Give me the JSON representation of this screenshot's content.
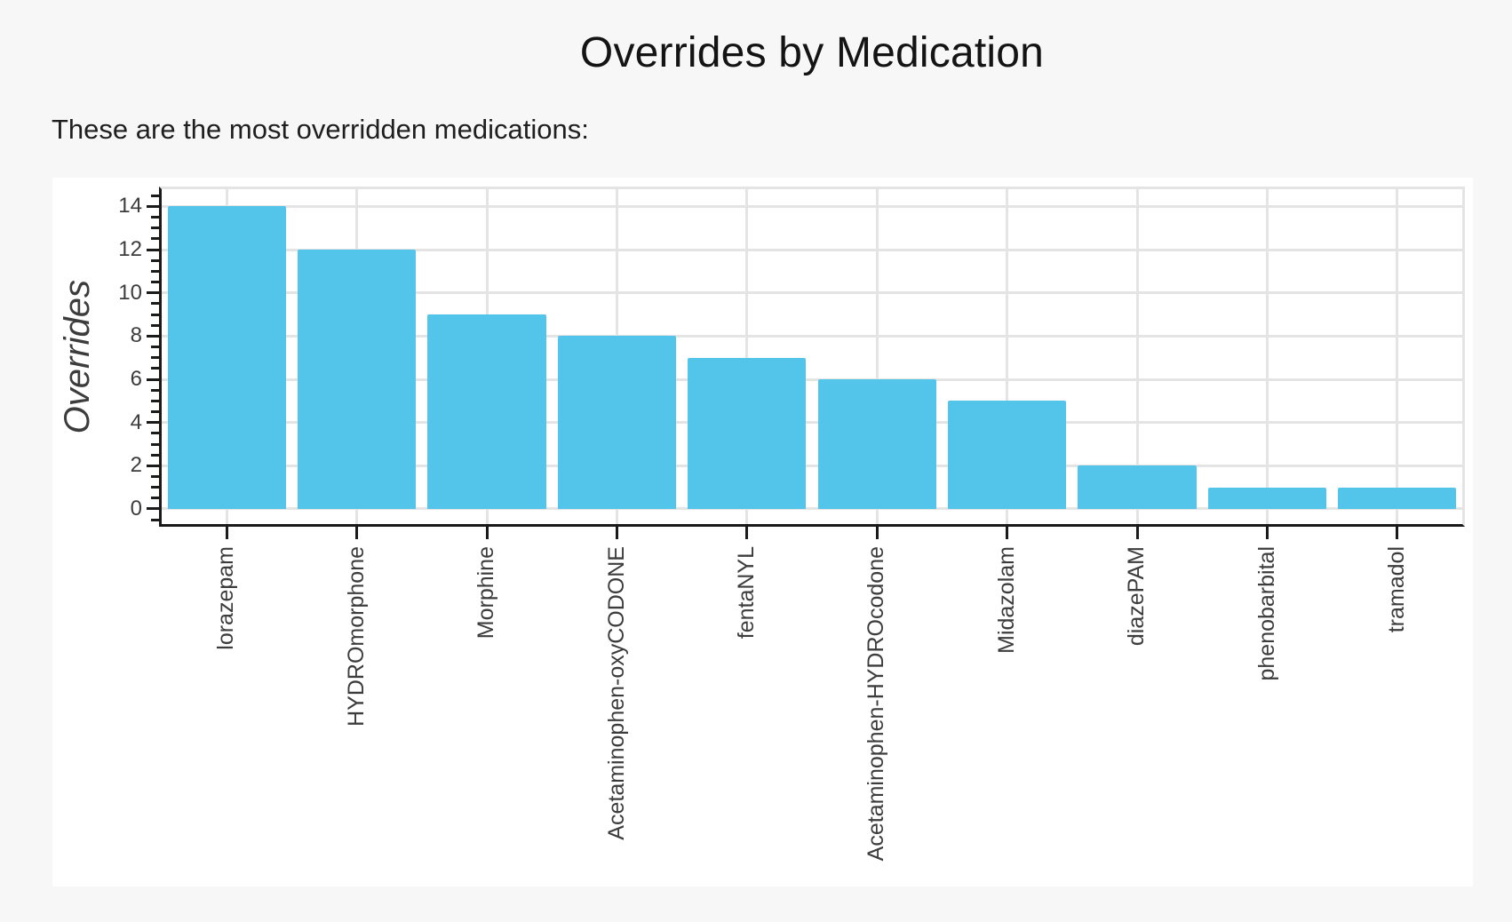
{
  "chart_data": {
    "type": "bar",
    "title": "Overrides by Medication",
    "subtitle": "These are the most overridden medications:",
    "ylabel": "Overrides",
    "xlabel": "",
    "categories": [
      "lorazepam",
      "HYDROmorphone",
      "Morphine",
      "Acetaminophen-oxyCODONE",
      "fentaNYL",
      "Acetaminophen-HYDROcodone",
      "Midazolam",
      "diazePAM",
      "phenobarbital",
      "tramadol"
    ],
    "values": [
      14,
      12,
      9,
      8,
      7,
      6,
      5,
      2,
      1,
      1
    ],
    "ylim": [
      -0.7,
      14.8
    ],
    "y_major_ticks": [
      0,
      2,
      4,
      6,
      8,
      10,
      12,
      14
    ],
    "y_minor_tick_step": 0.5,
    "grid": "major horizontal lines every 2 units; vertical lines at category centers",
    "legend_position": "none",
    "x_tick_label_rotation": 90
  },
  "style": {
    "bar_color": "#54c5ea",
    "grid_color": "#e4e4e4",
    "axis_color": "#1a1a1a",
    "tick_label_color": "#3c3c3c",
    "title_color": "#141414",
    "subtitle_color": "#1f1f1f",
    "page_background": "#f7f7f8",
    "card_background": "#ffffff"
  }
}
